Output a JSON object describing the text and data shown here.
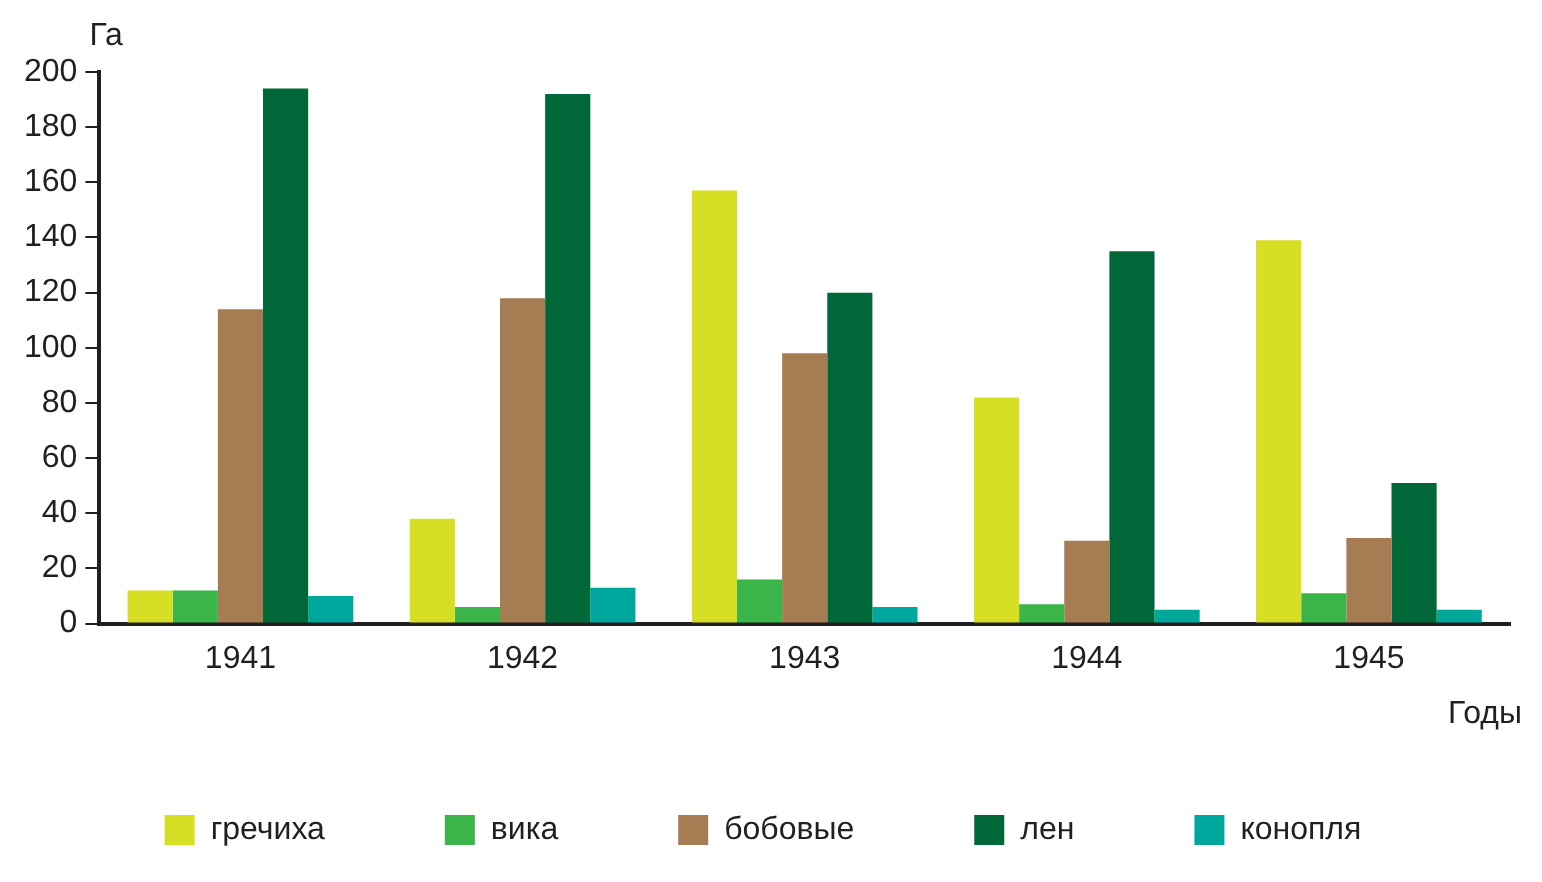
{
  "chart_data": {
    "type": "bar",
    "xlabel": "Годы",
    "ylabel": "Га",
    "categories": [
      "1941",
      "1942",
      "1943",
      "1944",
      "1945"
    ],
    "series": [
      {
        "name": "гречиха",
        "color": "#d6df23",
        "values": [
          12,
          38,
          157,
          82,
          139
        ]
      },
      {
        "name": "вика",
        "color": "#3bb54a",
        "values": [
          12,
          6,
          16,
          7,
          11
        ]
      },
      {
        "name": "бобовые",
        "color": "#a67c52",
        "values": [
          114,
          118,
          98,
          30,
          31
        ]
      },
      {
        "name": "лен",
        "color": "#006838",
        "values": [
          194,
          192,
          120,
          135,
          51
        ]
      },
      {
        "name": "конопля",
        "color": "#00a79d",
        "values": [
          10,
          13,
          6,
          5,
          5
        ]
      }
    ],
    "ylim": [
      0,
      200
    ],
    "yticks": [
      0,
      20,
      40,
      60,
      80,
      100,
      120,
      140,
      160,
      180,
      200
    ],
    "grid": false,
    "legend": "bottom"
  }
}
